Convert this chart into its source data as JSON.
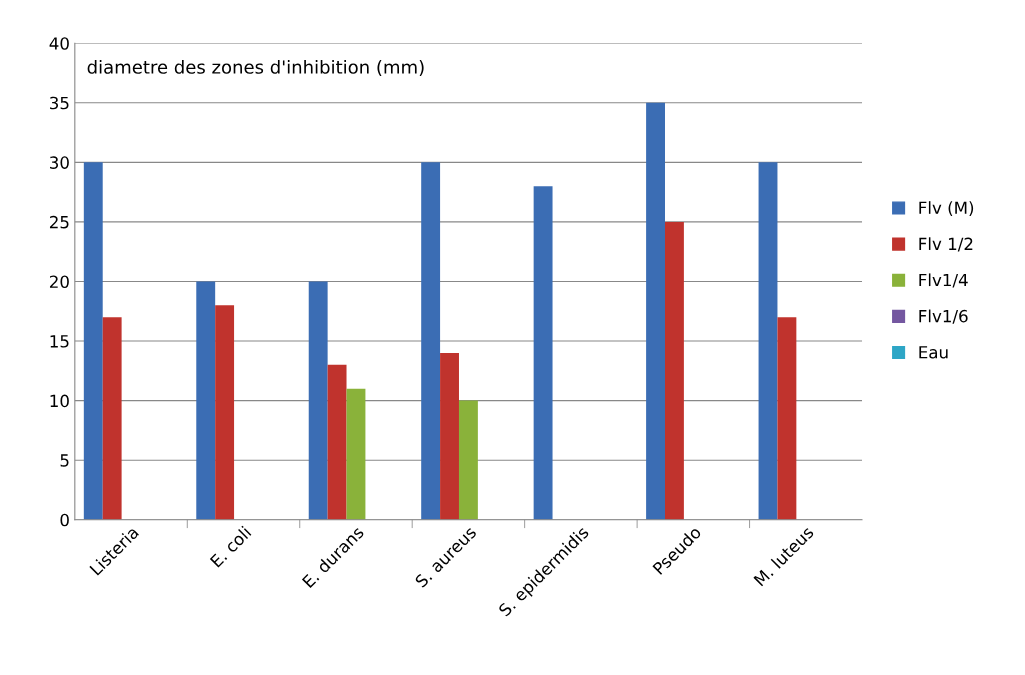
{
  "chart_data": {
    "type": "bar",
    "title": "diametre des zones d'inhibition (mm)",
    "categories": [
      "Listeria",
      "E. coli",
      "E. durans",
      "S. aureus",
      "S. epidermidis",
      "Pseudo",
      "M. luteus"
    ],
    "series": [
      {
        "name": "Flv (M)",
        "color": "#3b6db4",
        "values": [
          30,
          20,
          20,
          30,
          28,
          35,
          30
        ]
      },
      {
        "name": "Flv 1/2",
        "color": "#c0332d",
        "values": [
          17,
          18,
          13,
          14,
          0,
          25,
          17
        ]
      },
      {
        "name": "Flv1/4",
        "color": "#8ab23a",
        "values": [
          0,
          0,
          11,
          10,
          0,
          0,
          0
        ]
      },
      {
        "name": "Flv1/6",
        "color": "#7457a0",
        "values": [
          0,
          0,
          0,
          0,
          0,
          0,
          0
        ]
      },
      {
        "name": "Eau",
        "color": "#2ea6c6",
        "values": [
          0,
          0,
          0,
          0,
          0,
          0,
          0
        ]
      }
    ],
    "ylim": [
      0,
      40
    ],
    "yticks": [
      0,
      5,
      10,
      15,
      20,
      25,
      30,
      35,
      40
    ],
    "grid": "y",
    "legend": "right"
  }
}
